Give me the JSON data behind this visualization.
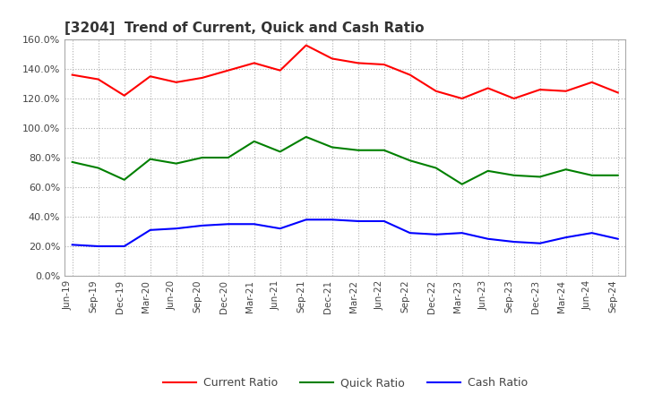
{
  "title": "[3204]  Trend of Current, Quick and Cash Ratio",
  "x_labels": [
    "Jun-19",
    "Sep-19",
    "Dec-19",
    "Mar-20",
    "Jun-20",
    "Sep-20",
    "Dec-20",
    "Mar-21",
    "Jun-21",
    "Sep-21",
    "Dec-21",
    "Mar-22",
    "Jun-22",
    "Sep-22",
    "Dec-22",
    "Mar-23",
    "Jun-23",
    "Sep-23",
    "Dec-23",
    "Mar-24",
    "Jun-24",
    "Sep-24"
  ],
  "current_ratio": [
    136,
    133,
    122,
    135,
    131,
    134,
    139,
    144,
    139,
    156,
    147,
    144,
    143,
    136,
    125,
    120,
    127,
    120,
    126,
    125,
    131,
    124
  ],
  "quick_ratio": [
    77,
    73,
    65,
    79,
    76,
    80,
    80,
    91,
    84,
    94,
    87,
    85,
    85,
    78,
    73,
    62,
    71,
    68,
    67,
    72,
    68,
    68
  ],
  "cash_ratio": [
    21,
    20,
    20,
    31,
    32,
    34,
    35,
    35,
    32,
    38,
    38,
    37,
    37,
    29,
    28,
    29,
    25,
    23,
    22,
    26,
    29,
    25
  ],
  "current_color": "#ff0000",
  "quick_color": "#008000",
  "cash_color": "#0000ff",
  "ylim": [
    0,
    160
  ],
  "yticks": [
    0,
    20,
    40,
    60,
    80,
    100,
    120,
    140,
    160
  ],
  "background_color": "#ffffff",
  "grid_color": "#b0b0b0"
}
